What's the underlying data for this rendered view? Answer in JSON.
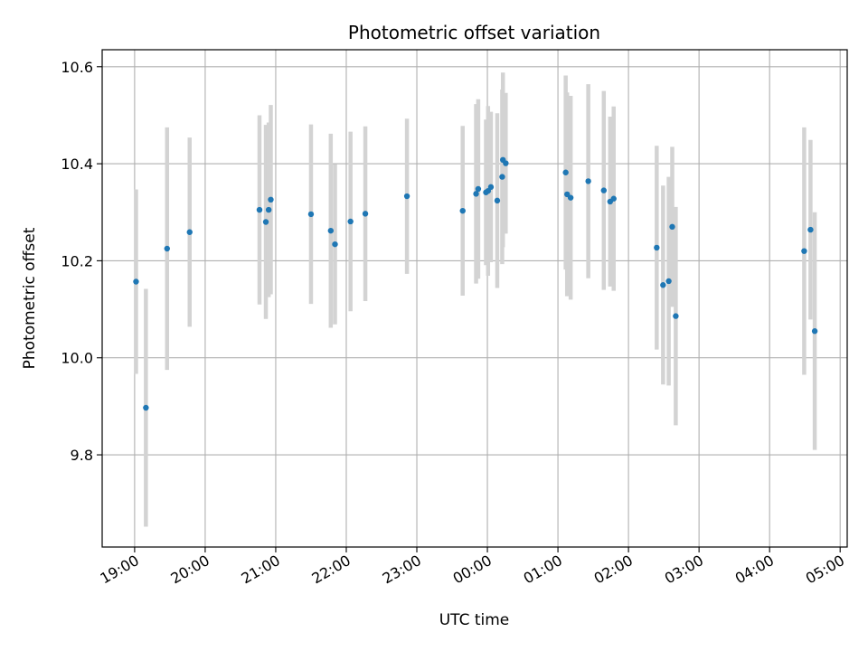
{
  "chart_data": {
    "type": "scatter",
    "title": "Photometric offset variation",
    "xlabel": "UTC time",
    "ylabel": "Photometric offset",
    "x_unit": "hours",
    "x_ticks": [
      {
        "value": 19,
        "label": "19:00"
      },
      {
        "value": 20,
        "label": "20:00"
      },
      {
        "value": 21,
        "label": "21:00"
      },
      {
        "value": 22,
        "label": "22:00"
      },
      {
        "value": 23,
        "label": "23:00"
      },
      {
        "value": 24,
        "label": "00:00"
      },
      {
        "value": 25,
        "label": "01:00"
      },
      {
        "value": 26,
        "label": "02:00"
      },
      {
        "value": 27,
        "label": "03:00"
      },
      {
        "value": 28,
        "label": "04:00"
      },
      {
        "value": 29,
        "label": "05:00"
      }
    ],
    "y_ticks": [
      {
        "value": 9.8,
        "label": "9.8"
      },
      {
        "value": 10.0,
        "label": "10.0"
      },
      {
        "value": 10.2,
        "label": "10.2"
      },
      {
        "value": 10.4,
        "label": "10.4"
      },
      {
        "value": 10.6,
        "label": "10.6"
      }
    ],
    "xlim": [
      18.54,
      29.1
    ],
    "ylim": [
      9.61,
      10.635
    ],
    "grid": true,
    "marker_color": "#1f77b4",
    "errorbar_color": "#d3d3d3",
    "points": [
      {
        "x": 19.02,
        "y": 10.157,
        "err": 0.19
      },
      {
        "x": 19.16,
        "y": 9.897,
        "err": 0.245
      },
      {
        "x": 19.46,
        "y": 10.225,
        "err": 0.25
      },
      {
        "x": 19.78,
        "y": 10.259,
        "err": 0.195
      },
      {
        "x": 20.77,
        "y": 10.305,
        "err": 0.195
      },
      {
        "x": 20.86,
        "y": 10.28,
        "err": 0.2
      },
      {
        "x": 20.9,
        "y": 10.305,
        "err": 0.18
      },
      {
        "x": 20.93,
        "y": 10.326,
        "err": 0.195
      },
      {
        "x": 21.5,
        "y": 10.296,
        "err": 0.185
      },
      {
        "x": 21.78,
        "y": 10.262,
        "err": 0.2
      },
      {
        "x": 21.84,
        "y": 10.234,
        "err": 0.165
      },
      {
        "x": 22.06,
        "y": 10.281,
        "err": 0.185
      },
      {
        "x": 22.27,
        "y": 10.297,
        "err": 0.18
      },
      {
        "x": 22.86,
        "y": 10.333,
        "err": 0.16
      },
      {
        "x": 23.65,
        "y": 10.303,
        "err": 0.175
      },
      {
        "x": 23.84,
        "y": 10.338,
        "err": 0.185
      },
      {
        "x": 23.87,
        "y": 10.348,
        "err": 0.185
      },
      {
        "x": 23.98,
        "y": 10.341,
        "err": 0.15
      },
      {
        "x": 24.01,
        "y": 10.344,
        "err": 0.175
      },
      {
        "x": 24.05,
        "y": 10.352,
        "err": 0.155
      },
      {
        "x": 24.14,
        "y": 10.324,
        "err": 0.18
      },
      {
        "x": 24.21,
        "y": 10.373,
        "err": 0.18
      },
      {
        "x": 24.22,
        "y": 10.408,
        "err": 0.18
      },
      {
        "x": 24.26,
        "y": 10.401,
        "err": 0.145
      },
      {
        "x": 25.11,
        "y": 10.382,
        "err": 0.2
      },
      {
        "x": 25.13,
        "y": 10.337,
        "err": 0.21
      },
      {
        "x": 25.18,
        "y": 10.33,
        "err": 0.21
      },
      {
        "x": 25.43,
        "y": 10.364,
        "err": 0.2
      },
      {
        "x": 25.65,
        "y": 10.345,
        "err": 0.205
      },
      {
        "x": 25.74,
        "y": 10.322,
        "err": 0.175
      },
      {
        "x": 25.79,
        "y": 10.328,
        "err": 0.19
      },
      {
        "x": 26.4,
        "y": 10.227,
        "err": 0.21
      },
      {
        "x": 26.49,
        "y": 10.15,
        "err": 0.205
      },
      {
        "x": 26.57,
        "y": 10.158,
        "err": 0.215
      },
      {
        "x": 26.62,
        "y": 10.27,
        "err": 0.165
      },
      {
        "x": 26.67,
        "y": 10.086,
        "err": 0.225
      },
      {
        "x": 28.49,
        "y": 10.22,
        "err": 0.255
      },
      {
        "x": 28.58,
        "y": 10.264,
        "err": 0.185
      },
      {
        "x": 28.64,
        "y": 10.055,
        "err": 0.245
      }
    ]
  }
}
